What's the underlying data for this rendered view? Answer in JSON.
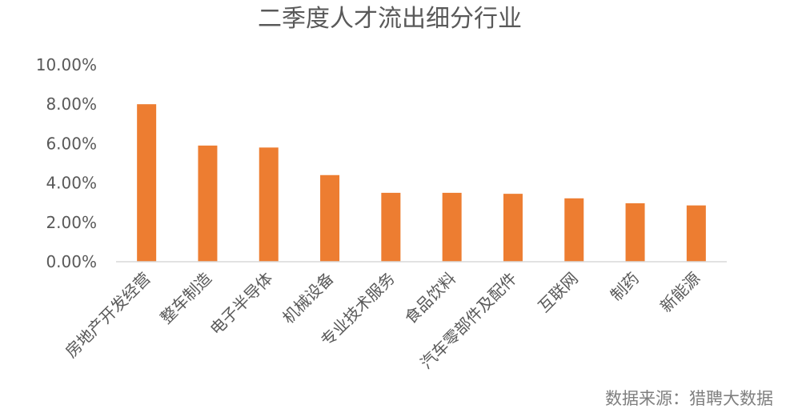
{
  "chart_data": {
    "type": "bar",
    "title": "二季度人才流出细分行业",
    "categories": [
      "房地产开发经营",
      "整车制造",
      "电子半导体",
      "机械设备",
      "专业技术服务",
      "食品饮料",
      "汽车零部件及配件",
      "互联网",
      "制药",
      "新能源"
    ],
    "values": [
      8.0,
      5.9,
      5.8,
      4.4,
      3.5,
      3.5,
      3.45,
      3.22,
      2.97,
      2.86
    ],
    "value_unit": "%",
    "ylim": [
      0,
      10
    ],
    "yticks": [
      "0.00%",
      "2.00%",
      "4.00%",
      "6.00%",
      "8.00%",
      "10.00%"
    ],
    "ytick_values": [
      0,
      2,
      4,
      6,
      8,
      10
    ],
    "xlabel": "",
    "ylabel": "",
    "grid": false,
    "bar_color": "#ed7d31",
    "axis_color": "#d9d9d9"
  },
  "source_note": "数据来源：猎聘大数据"
}
